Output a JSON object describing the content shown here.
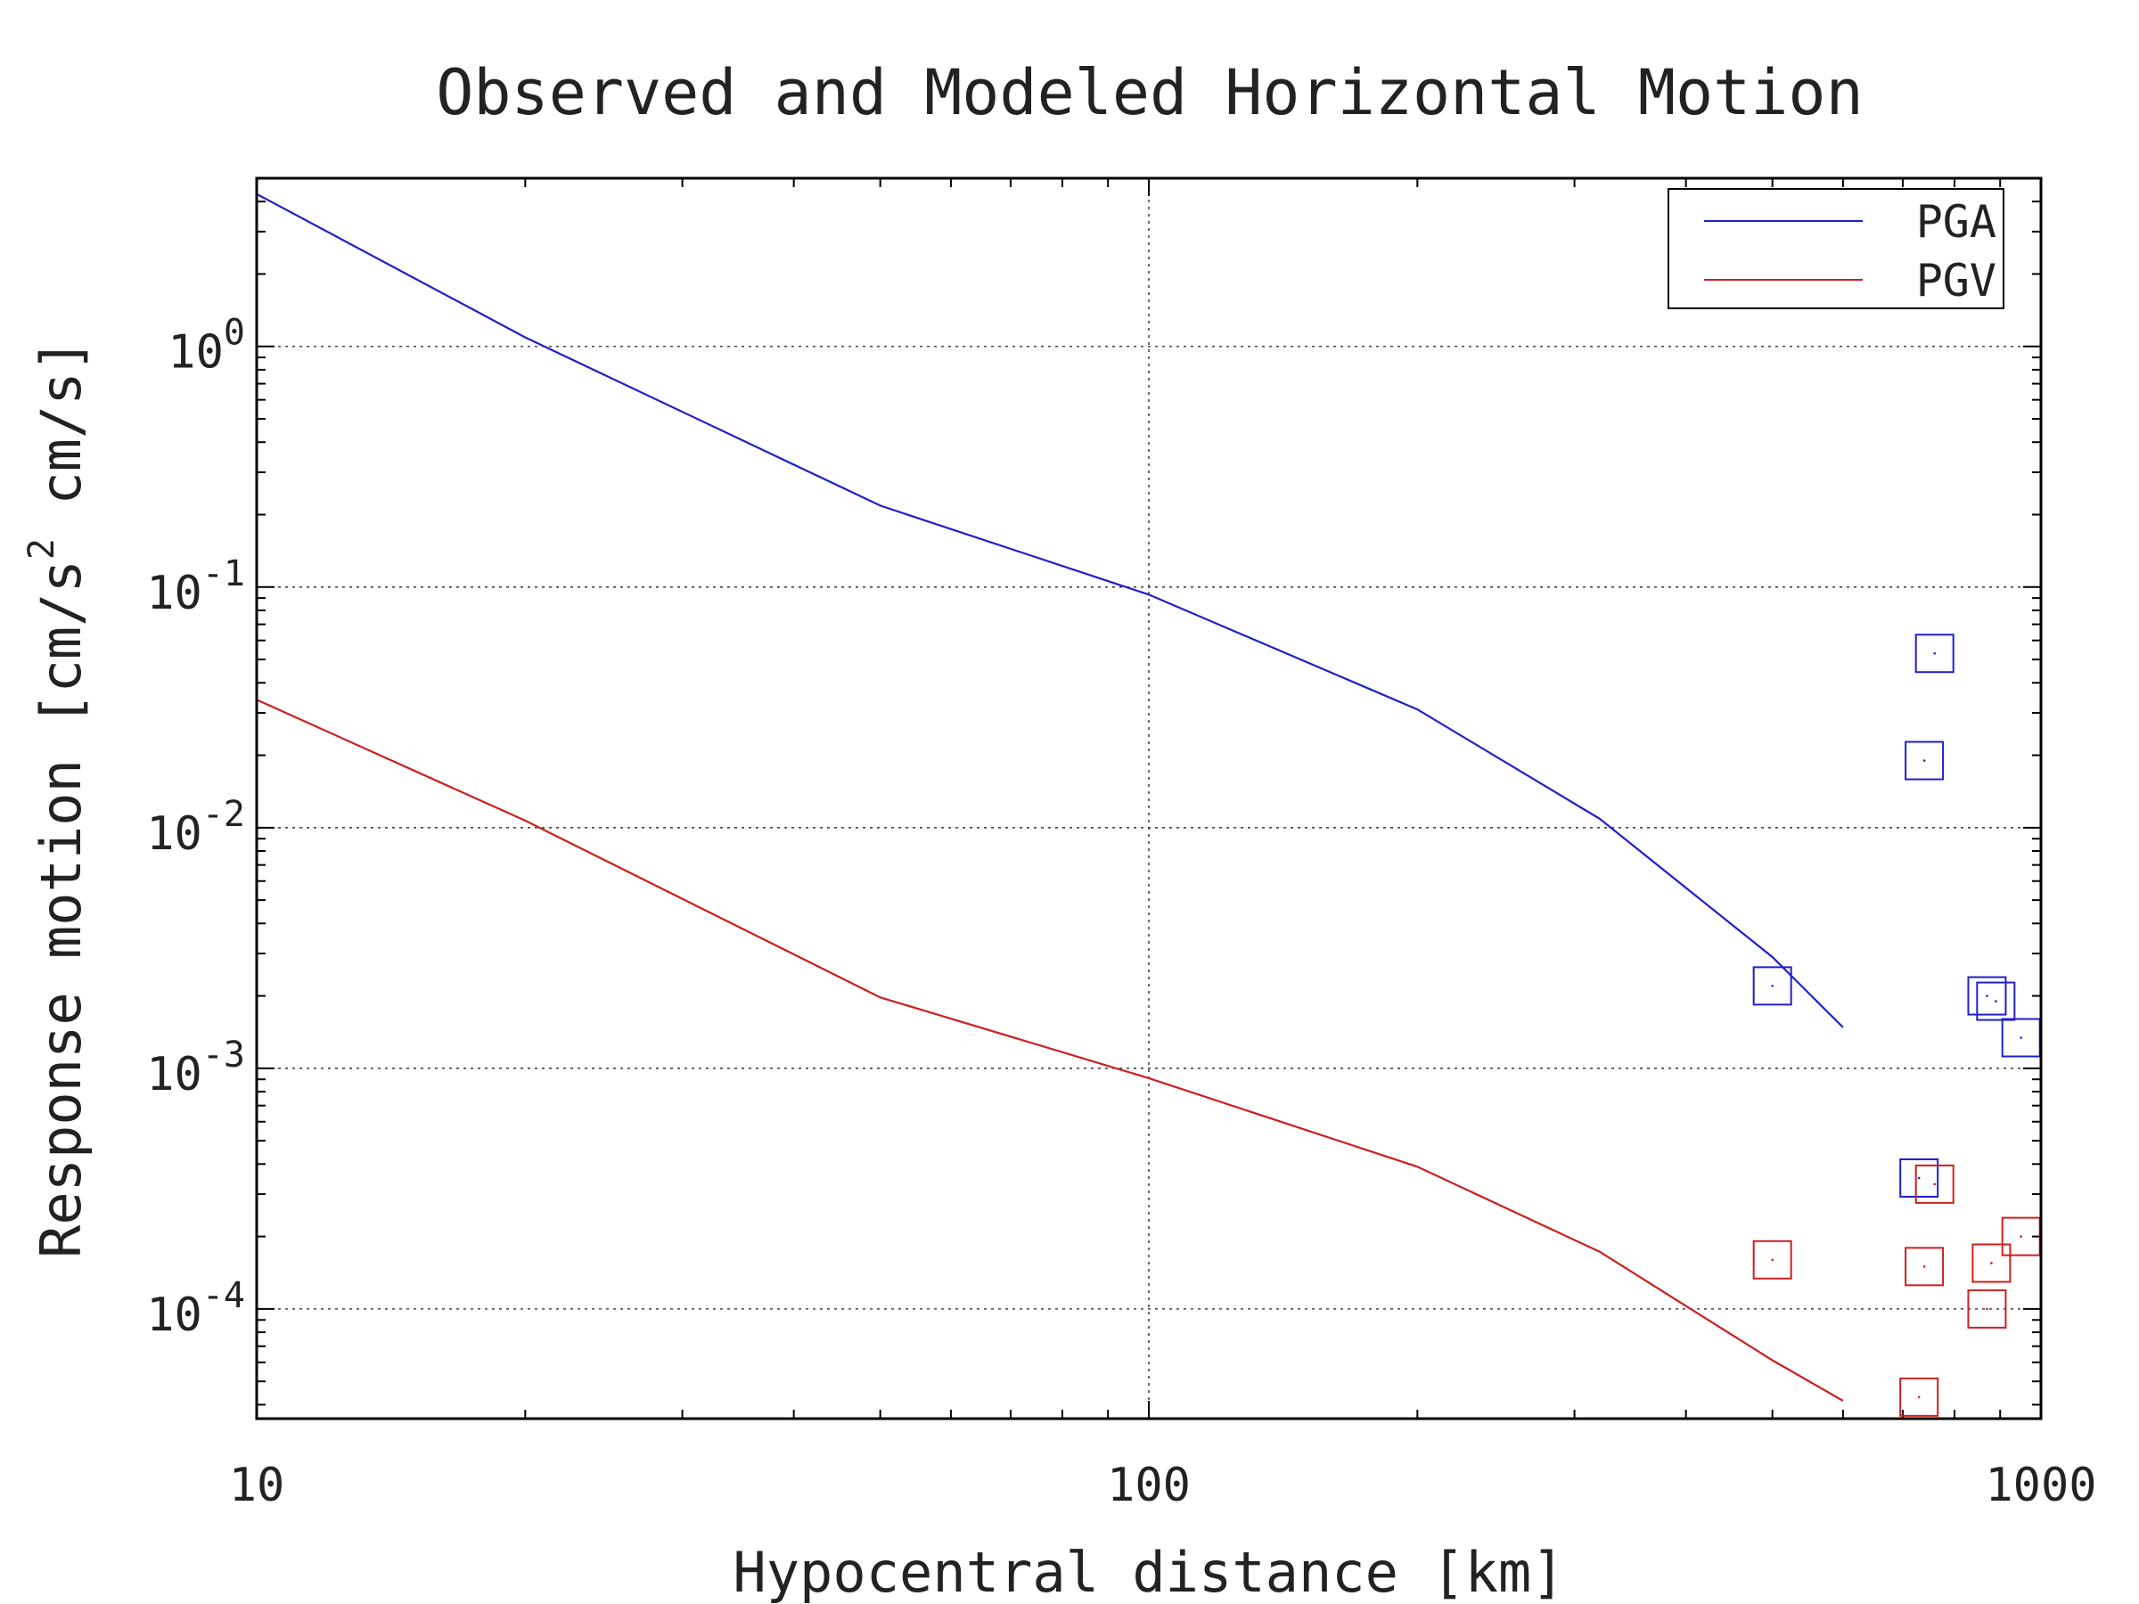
{
  "chart_data": {
    "type": "line",
    "title": "Observed and Modeled Horizontal Motion",
    "xlabel": "Hypocentral distance [km]",
    "ylabel": {
      "main": "Response motion  [cm/s",
      "sup": "2",
      "end": "  cm/s]"
    },
    "xscale": "log",
    "yscale": "log",
    "xlim": [
      10,
      1000
    ],
    "ylim": [
      3.5e-05,
      5
    ],
    "x_ticks": [
      {
        "value": 10,
        "label": "10"
      },
      {
        "value": 100,
        "label": "100"
      },
      {
        "value": 1000,
        "label": "1000"
      }
    ],
    "y_ticks": [
      {
        "value": 1,
        "base": "10",
        "exp": "0"
      },
      {
        "value": 0.1,
        "base": "10",
        "exp": "-1"
      },
      {
        "value": 0.01,
        "base": "10",
        "exp": "-2"
      },
      {
        "value": 0.001,
        "base": "10",
        "exp": "-3"
      },
      {
        "value": 0.0001,
        "base": "10",
        "exp": "-4"
      }
    ],
    "grid": true,
    "legend_position": "top-right",
    "series": [
      {
        "name": "PGA",
        "color": "#1f1fcc",
        "x": [
          10,
          20,
          50,
          100,
          200,
          320,
          500,
          600
        ],
        "y": [
          4.3,
          1.09,
          0.218,
          0.093,
          0.031,
          0.0109,
          0.0029,
          0.00148
        ],
        "observed": {
          "x": [
            500,
            740,
            760,
            870,
            890,
            950,
            730
          ],
          "y": [
            0.0022,
            0.019,
            0.053,
            0.002,
            0.0019,
            0.00134,
            0.00035
          ]
        }
      },
      {
        "name": "PGV",
        "color": "#cc1f1f",
        "x": [
          10,
          20,
          50,
          100,
          200,
          320,
          500,
          600
        ],
        "y": [
          0.034,
          0.0107,
          0.00197,
          0.00091,
          0.00039,
          0.000173,
          6.12e-05,
          4.15e-05
        ],
        "observed": {
          "x": [
            500,
            740,
            760,
            880,
            870,
            950,
            730
          ],
          "y": [
            0.00016,
            0.00015,
            0.00033,
            0.000155,
            0.0001,
            0.0002,
            4.3e-05
          ]
        }
      }
    ]
  }
}
